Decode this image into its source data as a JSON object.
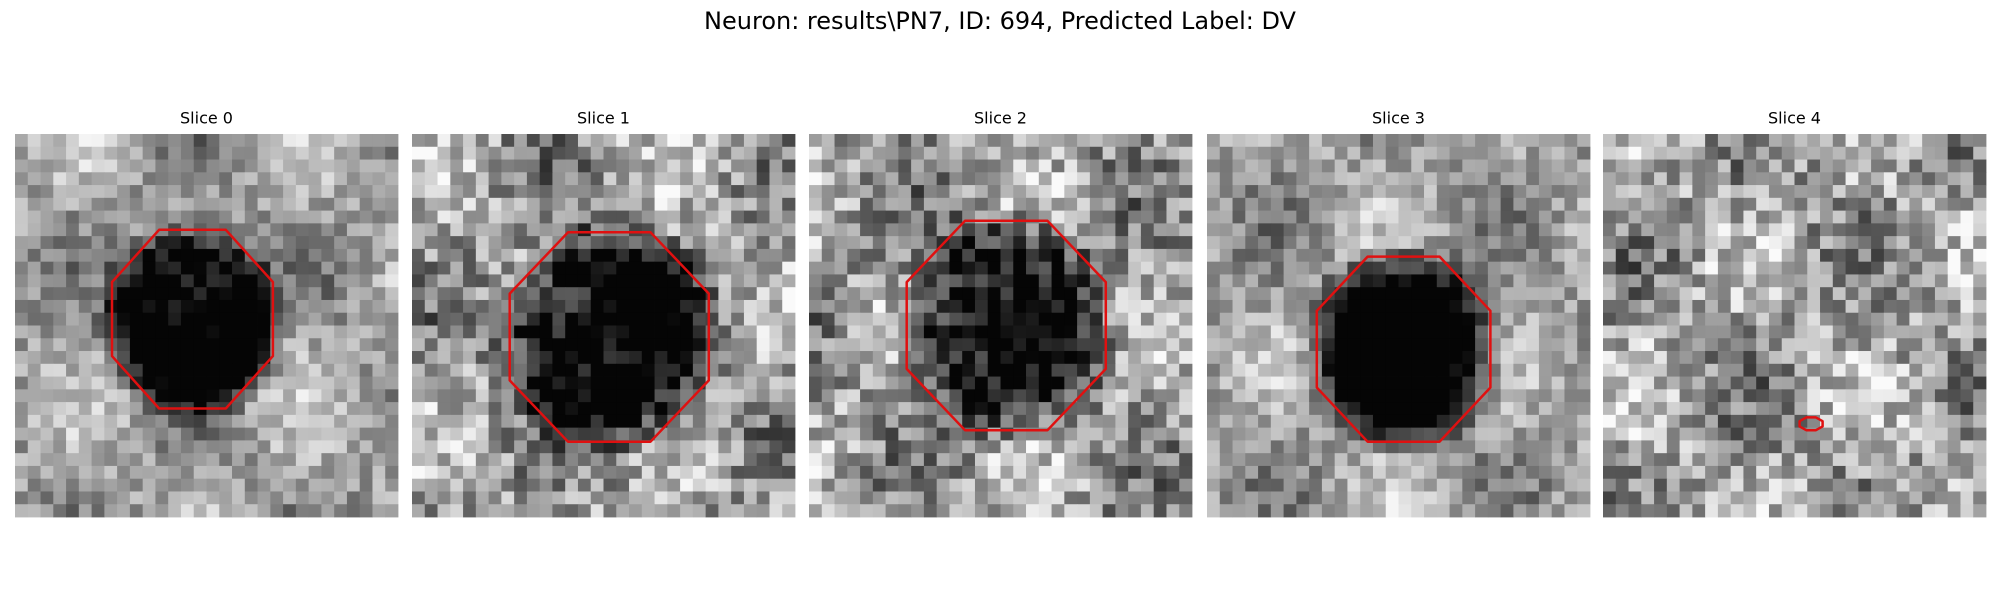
{
  "title": "Neuron: results\\PN7, ID: 694, Predicted Label: DV",
  "panels": [
    {
      "title": "Slice 0"
    },
    {
      "title": "Slice 1"
    },
    {
      "title": "Slice 2"
    },
    {
      "title": "Slice 3"
    },
    {
      "title": "Slice 4"
    }
  ]
}
